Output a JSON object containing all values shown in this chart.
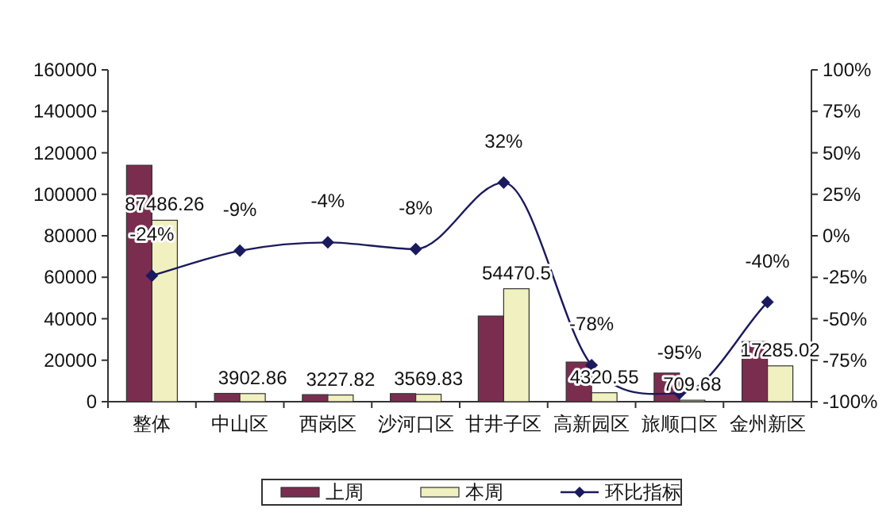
{
  "chart_data": {
    "type": "bar",
    "categories": [
      "整体",
      "中山区",
      "西岗区",
      "沙河口区",
      "甘井子区",
      "高新园区",
      "旅顺口区",
      "金州新区"
    ],
    "series": [
      {
        "name": "上周",
        "color": "#7b2d50",
        "values": [
          114000,
          4000,
          3400,
          3900,
          41300,
          19100,
          13800,
          29000
        ]
      },
      {
        "name": "本周",
        "color": "#f0f0c0",
        "values": [
          87486.26,
          3902.86,
          3227.82,
          3569.83,
          54470.5,
          4320.55,
          709.68,
          17285.02
        ],
        "value_labels": [
          "87486.26",
          "3902.86",
          "3227.82",
          "3569.83",
          "54470.5",
          "4320.55",
          "709.68",
          "17285.02"
        ]
      },
      {
        "name": "环比指标",
        "type": "line",
        "axis": "y2",
        "color": "#1a1a5e",
        "marker": "diamond",
        "values": [
          -24,
          -9,
          -4,
          -8,
          32,
          -78,
          -95,
          -40
        ],
        "value_labels": [
          "-24%",
          "-9%",
          "-4%",
          "-8%",
          "32%",
          "-78%",
          "-95%",
          "-40%"
        ]
      }
    ],
    "ylim": [
      0,
      160000
    ],
    "yticks": [
      0,
      20000,
      40000,
      60000,
      80000,
      100000,
      120000,
      140000,
      160000
    ],
    "y2lim": [
      -100,
      100
    ],
    "y2ticks": [
      {
        "value": -100,
        "label": "-100%"
      },
      {
        "value": -75,
        "label": "-75%"
      },
      {
        "value": -50,
        "label": "-50%"
      },
      {
        "value": -25,
        "label": "-25%"
      },
      {
        "value": 0,
        "label": "0%"
      },
      {
        "value": 25,
        "label": "25%"
      },
      {
        "value": 50,
        "label": "50%"
      },
      {
        "value": 75,
        "label": "75%"
      },
      {
        "value": 100,
        "label": "100%"
      }
    ],
    "legend": "bottom",
    "grid": false
  }
}
